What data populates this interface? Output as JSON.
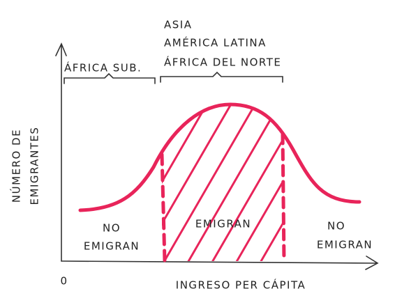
{
  "axes": {
    "y_label": [
      "NÚMERO DE",
      "EMIGRANTES"
    ],
    "x_label": "INGRESO PER CÁPITA",
    "origin": "0"
  },
  "brackets": [
    {
      "labels": [
        "ÁFRICA SUB."
      ]
    },
    {
      "labels": [
        "ASIA",
        "AMÉRICA LATINA",
        "ÁFRICA DEL NORTE"
      ]
    }
  ],
  "regions": [
    {
      "label": [
        "NO",
        "EMIGRAN"
      ]
    },
    {
      "label": [
        "EMIGRAN"
      ]
    },
    {
      "label": [
        "NO",
        "EMIGRAN"
      ]
    }
  ]
}
